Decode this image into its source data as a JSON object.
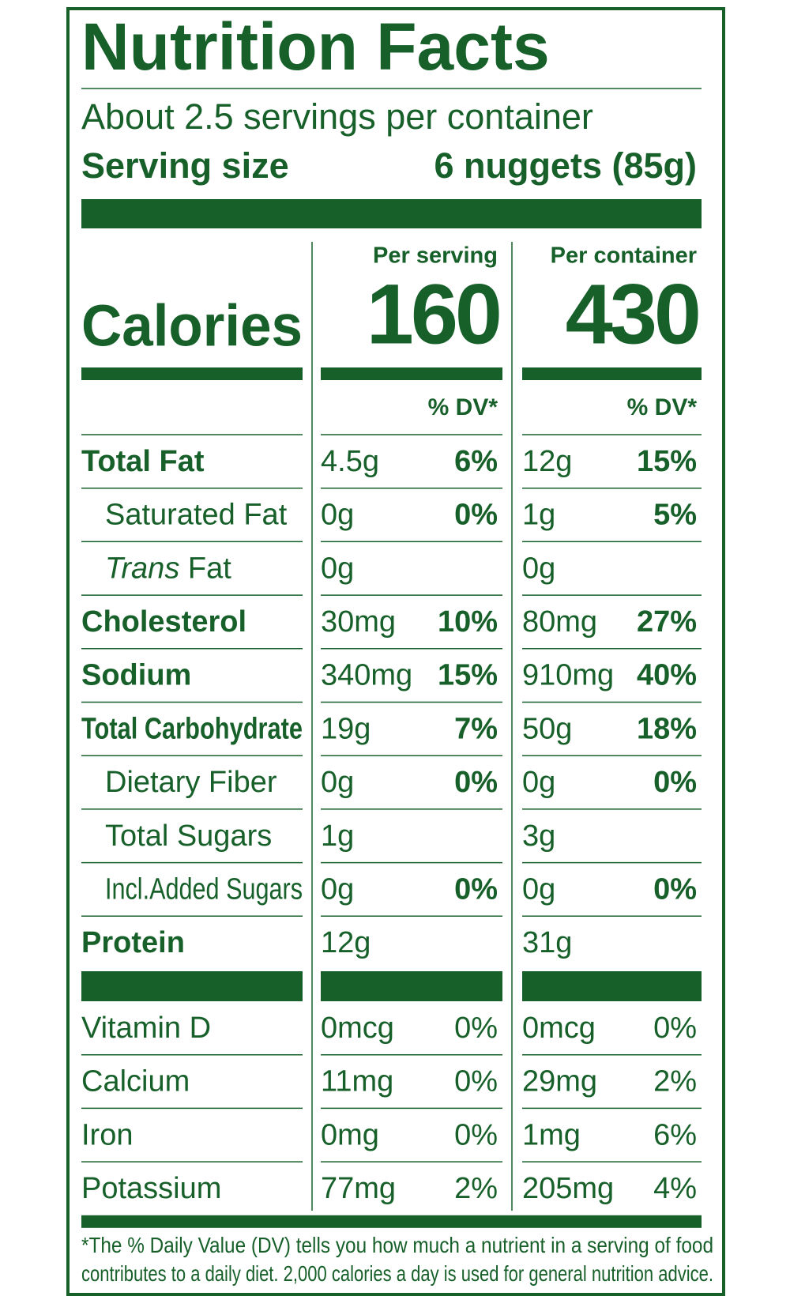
{
  "title": "Nutrition Facts",
  "servings": "About 2.5 servings per container",
  "serving_size": {
    "label": "Serving size",
    "value": "6 nuggets (85g)"
  },
  "columns": [
    "Per serving",
    "Per container"
  ],
  "calories": {
    "label": "Calories",
    "values": [
      "160",
      "430"
    ]
  },
  "dv_header": [
    "% DV*",
    "% DV*"
  ],
  "color": "#17602a",
  "nutrients": [
    {
      "name": "Total Fat",
      "bold": true,
      "per_serving": {
        "amount": "4.5g",
        "dv": "6%"
      },
      "per_container": {
        "amount": "12g",
        "dv": "15%"
      }
    },
    {
      "name": "Saturated Fat",
      "indent": true,
      "per_serving": {
        "amount": "0g",
        "dv": "0%"
      },
      "per_container": {
        "amount": "1g",
        "dv": "5%"
      }
    },
    {
      "name_italic": "Trans",
      "name": " Fat",
      "indent": true,
      "per_serving": {
        "amount": "0g",
        "dv": null
      },
      "per_container": {
        "amount": "0g",
        "dv": null
      }
    },
    {
      "name": "Cholesterol",
      "bold": true,
      "per_serving": {
        "amount": "30mg",
        "dv": "10%"
      },
      "per_container": {
        "amount": "80mg",
        "dv": "27%"
      }
    },
    {
      "name": "Sodium",
      "bold": true,
      "per_serving": {
        "amount": "340mg",
        "dv": "15%"
      },
      "per_container": {
        "amount": "910mg",
        "dv": "40%"
      }
    },
    {
      "name": "Total Carbohydrate",
      "bold": true,
      "per_serving": {
        "amount": "19g",
        "dv": "7%"
      },
      "per_container": {
        "amount": "50g",
        "dv": "18%"
      }
    },
    {
      "name": "Dietary Fiber",
      "indent": true,
      "per_serving": {
        "amount": "0g",
        "dv": "0%"
      },
      "per_container": {
        "amount": "0g",
        "dv": "0%"
      }
    },
    {
      "name": "Total Sugars",
      "indent": true,
      "per_serving": {
        "amount": "1g",
        "dv": null
      },
      "per_container": {
        "amount": "3g",
        "dv": null
      }
    },
    {
      "name": "Incl.Added Sugars",
      "indent": true,
      "per_serving": {
        "amount": "0g",
        "dv": "0%"
      },
      "per_container": {
        "amount": "0g",
        "dv": "0%"
      }
    },
    {
      "name": "Protein",
      "bold": true,
      "per_serving": {
        "amount": "12g",
        "dv": null
      },
      "per_container": {
        "amount": "31g",
        "dv": null
      }
    }
  ],
  "vitamins": [
    {
      "name": "Vitamin D",
      "per_serving": {
        "amount": "0mcg",
        "dv": "0%"
      },
      "per_container": {
        "amount": "0mcg",
        "dv": "0%"
      }
    },
    {
      "name": "Calcium",
      "per_serving": {
        "amount": "11mg",
        "dv": "0%"
      },
      "per_container": {
        "amount": "29mg",
        "dv": "2%"
      }
    },
    {
      "name": "Iron",
      "per_serving": {
        "amount": "0mg",
        "dv": "0%"
      },
      "per_container": {
        "amount": "1mg",
        "dv": "6%"
      }
    },
    {
      "name": "Potassium",
      "per_serving": {
        "amount": "77mg",
        "dv": "2%"
      },
      "per_container": {
        "amount": "205mg",
        "dv": "4%"
      }
    }
  ],
  "footnote": [
    "*The % Daily Value (DV) tells you how much a nutrient in a serving of food",
    "contributes to a daily diet. 2,000 calories a day is used for general nutrition advice."
  ]
}
